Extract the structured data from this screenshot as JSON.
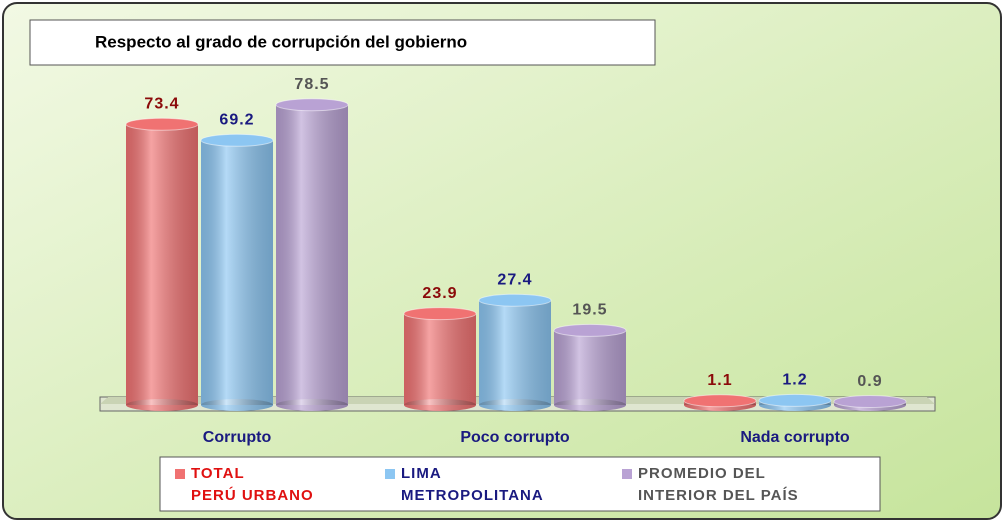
{
  "chart_data": {
    "type": "bar",
    "title": "Respecto al grado de corrupción del gobierno",
    "categories": [
      "Corrupto",
      "Poco corrupto",
      "Nada corrupto"
    ],
    "series": [
      {
        "name": "TOTAL\nPERÚ URBANO",
        "color": "#f07272",
        "label_color": "#8b0a0a",
        "legend_color": "#e01010",
        "values": [
          73.4,
          23.9,
          1.1
        ]
      },
      {
        "name": "LIMA\nMETROPOLITANA",
        "color": "#8cc6f2",
        "label_color": "#1a1a80",
        "legend_color": "#1a1a80",
        "values": [
          69.2,
          27.4,
          1.2
        ]
      },
      {
        "name": "PROMEDIO DEL\nINTERIOR DEL PAÍS",
        "color": "#b9a2d4",
        "label_color": "#555555",
        "legend_color": "#555555",
        "values": [
          78.5,
          19.5,
          0.9
        ]
      }
    ],
    "ylim": [
      0,
      80
    ]
  }
}
